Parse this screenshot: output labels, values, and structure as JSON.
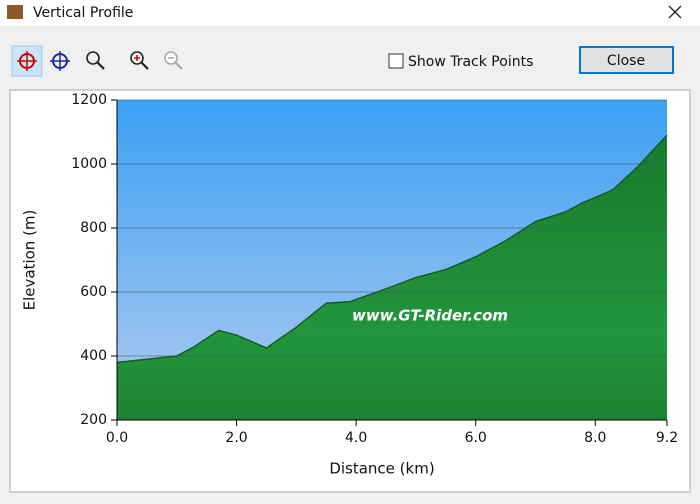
{
  "window": {
    "title": "Vertical Profile",
    "checkbox": "Show Track Points",
    "button": "Close"
  },
  "chart_data": {
    "type": "area",
    "x_label": "Distance (km)",
    "y_label": "Elevation (m)",
    "watermark": "www.GT-Rider.com",
    "x": [
      0,
      0.5,
      1.0,
      1.3,
      1.7,
      2.0,
      2.5,
      3.0,
      3.5,
      3.9,
      4.5,
      5.0,
      5.5,
      6.0,
      6.5,
      7.0,
      7.5,
      7.8,
      8.0,
      8.3,
      8.7,
      9.0,
      9.2
    ],
    "values": [
      380,
      390,
      400,
      430,
      480,
      465,
      425,
      490,
      565,
      570,
      610,
      645,
      670,
      710,
      760,
      820,
      850,
      880,
      895,
      920,
      990,
      1050,
      1090
    ],
    "color": "#22913c",
    "xlim": [
      0,
      9.2
    ],
    "ylim": [
      200,
      1200
    ],
    "xticks": [
      {
        "value": 0,
        "label": "0.0"
      },
      {
        "value": 2,
        "label": "2.0"
      },
      {
        "value": 4,
        "label": "4.0"
      },
      {
        "value": 6,
        "label": "6.0"
      },
      {
        "value": 8,
        "label": "8.0"
      },
      9.2
    ],
    "yticks": [
      200,
      400,
      600,
      800,
      1000,
      1200
    ],
    "grid": true
  }
}
